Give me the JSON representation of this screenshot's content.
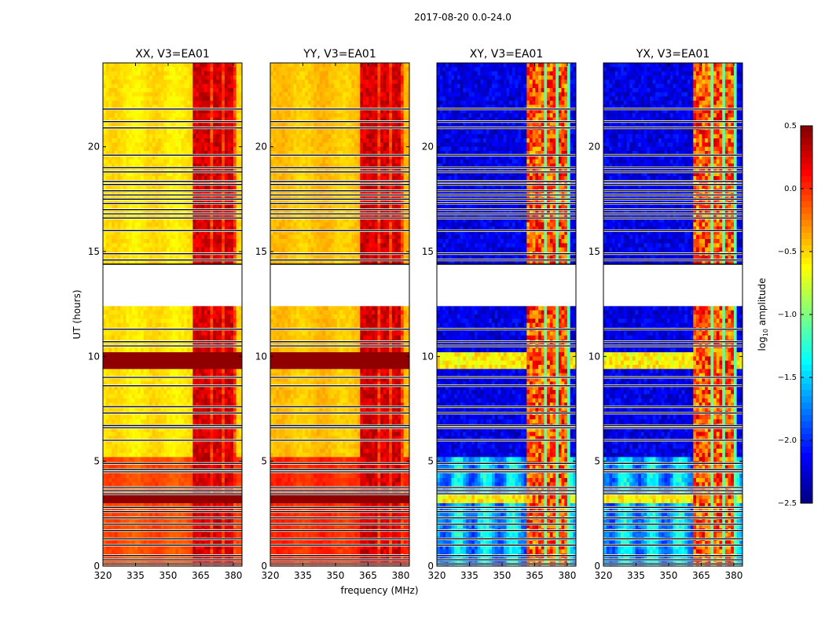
{
  "chart_data": {
    "type": "heatmap",
    "title": "2017-08-20 0.0-24.0",
    "xlabel": "frequency (MHz)",
    "ylabel": "UT (hours)",
    "xlim": [
      320,
      384
    ],
    "ylim": [
      0,
      24
    ],
    "xticks": [
      320,
      335,
      350,
      365,
      380
    ],
    "yticks": [
      0,
      5,
      10,
      15,
      20
    ],
    "panels": [
      {
        "title": "XX, V3=EA01",
        "base": -0.55,
        "kind": "parallel"
      },
      {
        "title": "YY, V3=EA01",
        "base": -0.45,
        "kind": "parallel"
      },
      {
        "title": "XY, V3=EA01",
        "base": -2.2,
        "kind": "cross"
      },
      {
        "title": "YX, V3=EA01",
        "base": -2.2,
        "kind": "cross"
      }
    ],
    "rfi_band_mhz": [
      361,
      381
    ],
    "no_data_hours": [
      12.4,
      14.4
    ],
    "high_amplitude_hours": [
      [
        9.4,
        10.1
      ],
      [
        3.0,
        3.4
      ]
    ],
    "flagged_hours": [
      0.1,
      0.3,
      0.5,
      1.0,
      1.3,
      1.7,
      2.0,
      2.3,
      2.6,
      2.8,
      3.45,
      3.6,
      3.75,
      4.5,
      4.6,
      4.9,
      6.0,
      6.6,
      6.7,
      7.3,
      7.6,
      8.6,
      9.0,
      10.5,
      10.7,
      11.3,
      14.6,
      14.9,
      16.0,
      16.6,
      16.8,
      17.0,
      17.3,
      17.5,
      17.7,
      17.9,
      18.2,
      18.35,
      18.8,
      19.0,
      19.6,
      20.9,
      21.2,
      21.8
    ],
    "colorbar": {
      "label": "log10 amplitude",
      "vmin": -2.5,
      "vmax": 0.5,
      "ticks": [
        "0.5",
        "0.0",
        "−0.5",
        "−1.0",
        "−1.5",
        "−2.0",
        "−2.5"
      ],
      "colormap": "jet"
    }
  }
}
